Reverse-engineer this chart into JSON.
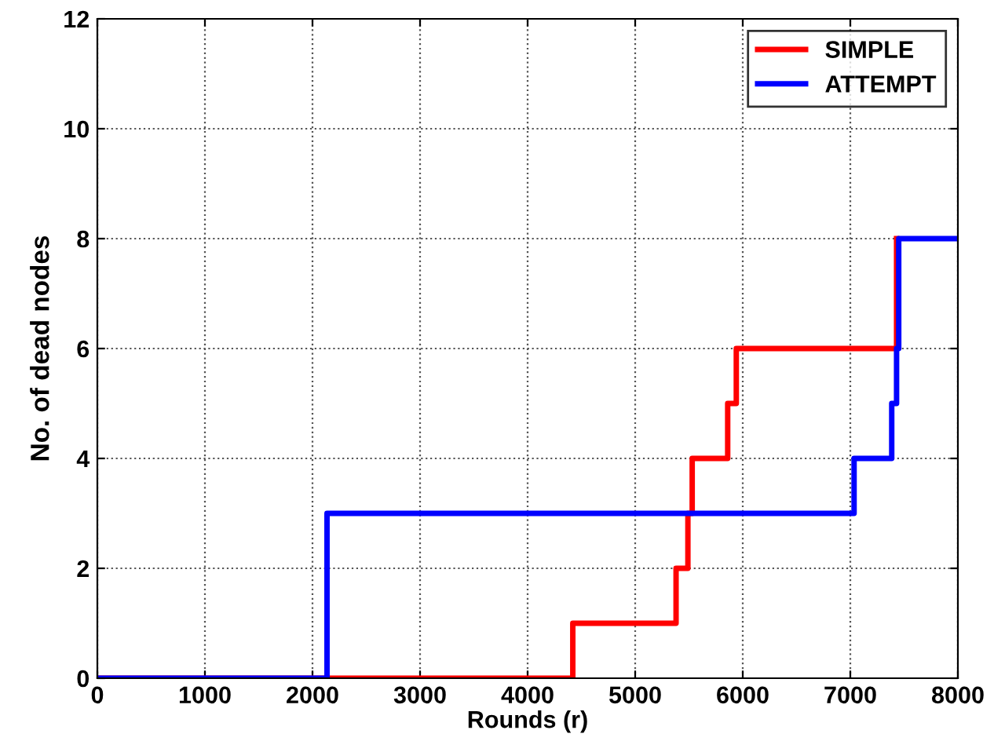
{
  "chart_data": {
    "type": "step",
    "xlabel": "Rounds (r)",
    "ylabel": "No. of dead nodes",
    "series": [
      {
        "name": "SIMPLE",
        "color": "#ff0000",
        "x": [
          0,
          4420,
          5380,
          5490,
          5530,
          5860,
          5940,
          7430
        ],
        "values": [
          0,
          1,
          2,
          3,
          4,
          5,
          6,
          8
        ]
      },
      {
        "name": "ATTEMPT",
        "color": "#0000ff",
        "x": [
          0,
          2135,
          7035,
          7385,
          7430,
          7450,
          8000
        ],
        "values": [
          0,
          3,
          4,
          5,
          6,
          8,
          8
        ]
      }
    ],
    "xlim": [
      0,
      8000
    ],
    "xticks": [
      0,
      1000,
      2000,
      3000,
      4000,
      5000,
      6000,
      7000,
      8000
    ],
    "ylim": [
      0,
      12
    ],
    "yticks": [
      0,
      2,
      4,
      6,
      8,
      10,
      12
    ],
    "grid": true,
    "legend": "top right",
    "line_style": "solid",
    "marker": "none"
  }
}
